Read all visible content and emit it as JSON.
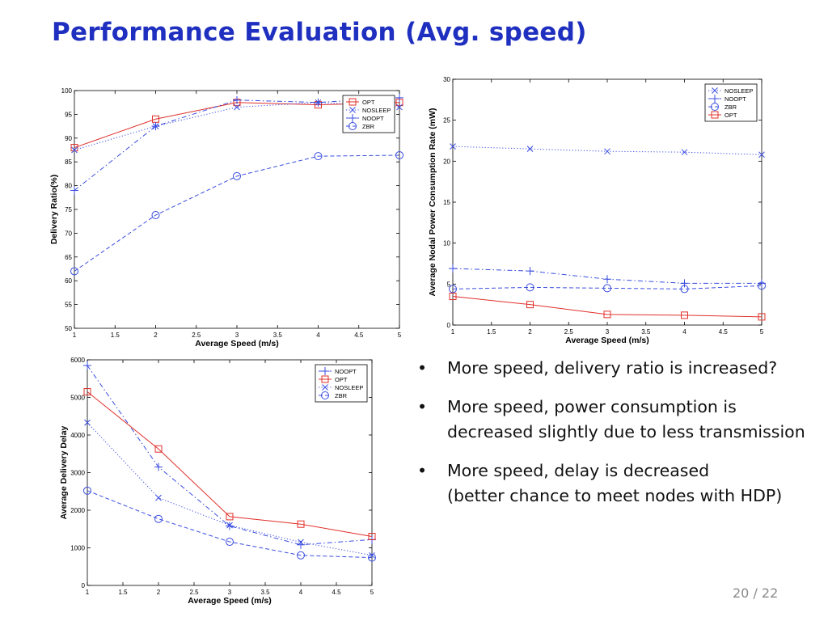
{
  "slide": {
    "title": "Performance Evaluation (Avg. speed)",
    "page_number": "20 / 22",
    "bullets": [
      {
        "line1": "More speed, delivery ratio is increased?",
        "line2": ""
      },
      {
        "line1": "More speed, power consumption is decreased slightly due to less transmission",
        "line2": ""
      },
      {
        "line1": "More speed, delay is decreased",
        "line2": "(better chance to meet nodes with HDP)"
      }
    ]
  },
  "chart_data": [
    {
      "type": "line",
      "xlabel": "Average Speed (m/s)",
      "ylabel": "Delivery Ratio(%)",
      "xlim": [
        1,
        5
      ],
      "ylim": [
        50,
        100
      ],
      "xticks": [
        "1",
        "1.5",
        "2",
        "2.5",
        "3",
        "3.5",
        "4",
        "4.5",
        "5"
      ],
      "yticks": [
        "50",
        "55",
        "60",
        "65",
        "70",
        "75",
        "80",
        "85",
        "90",
        "95",
        "100"
      ],
      "x": [
        1,
        2,
        3,
        4,
        5
      ],
      "legend_position": "top-right",
      "series": [
        {
          "name": "OPT",
          "values": [
            88,
            94,
            97.5,
            97,
            97.5
          ],
          "color": "#e0302a",
          "marker": "square",
          "dash": "solid"
        },
        {
          "name": "NOSLEEP",
          "values": [
            87.5,
            92.5,
            96.5,
            97.5,
            96.5
          ],
          "color": "#3a4de0",
          "marker": "x",
          "dash": "dotted"
        },
        {
          "name": "NOOPT",
          "values": [
            79,
            92.5,
            98,
            97.5,
            98.5
          ],
          "color": "#3a4de0",
          "marker": "plus",
          "dash": "dashdot"
        },
        {
          "name": "ZBR",
          "values": [
            62,
            73.8,
            82,
            86.2,
            86.4
          ],
          "color": "#3a4de0",
          "marker": "circle",
          "dash": "dashed"
        }
      ]
    },
    {
      "type": "line",
      "xlabel": "Average Speed (m/s)",
      "ylabel": "Average Nodal Power Consumption Rate (mW)",
      "xlim": [
        1,
        5
      ],
      "ylim": [
        0,
        30
      ],
      "xticks": [
        "1",
        "1.5",
        "2",
        "2.5",
        "3",
        "3.5",
        "4",
        "4.5",
        "5"
      ],
      "yticks": [
        "0",
        "5",
        "10",
        "15",
        "20",
        "25",
        "30"
      ],
      "x": [
        1,
        2,
        3,
        4,
        5
      ],
      "legend_position": "top-right",
      "series": [
        {
          "name": "NOSLEEP",
          "values": [
            21.8,
            21.5,
            21.2,
            21.1,
            20.8
          ],
          "color": "#3a4de0",
          "marker": "x",
          "dash": "dotted"
        },
        {
          "name": "NOOPT",
          "values": [
            6.9,
            6.6,
            5.6,
            5.1,
            5.1
          ],
          "color": "#3a4de0",
          "marker": "plus",
          "dash": "dashdot"
        },
        {
          "name": "ZBR",
          "values": [
            4.4,
            4.6,
            4.5,
            4.4,
            4.8
          ],
          "color": "#3a4de0",
          "marker": "circle",
          "dash": "dashed"
        },
        {
          "name": "OPT",
          "values": [
            3.5,
            2.5,
            1.3,
            1.2,
            1.0
          ],
          "color": "#e0302a",
          "marker": "square",
          "dash": "solid"
        }
      ]
    },
    {
      "type": "line",
      "xlabel": "Average Speed (m/s)",
      "ylabel": "Average Delivery Delay",
      "xlim": [
        1,
        5
      ],
      "ylim": [
        0,
        6000
      ],
      "xticks": [
        "1",
        "1.5",
        "2",
        "2.5",
        "3",
        "3.5",
        "4",
        "4.5",
        "5"
      ],
      "yticks": [
        "0",
        "1000",
        "2000",
        "3000",
        "4000",
        "5000",
        "6000"
      ],
      "x": [
        1,
        2,
        3,
        4,
        5
      ],
      "legend_position": "top-right",
      "series": [
        {
          "name": "NOOPT",
          "values": [
            5850,
            3150,
            1580,
            1080,
            1220
          ],
          "color": "#3a4de0",
          "marker": "plus",
          "dash": "dashdot"
        },
        {
          "name": "OPT",
          "values": [
            5150,
            3630,
            1830,
            1630,
            1300
          ],
          "color": "#e0302a",
          "marker": "square",
          "dash": "solid"
        },
        {
          "name": "NOSLEEP",
          "values": [
            4330,
            2330,
            1600,
            1150,
            800
          ],
          "color": "#3a4de0",
          "marker": "x",
          "dash": "dotted"
        },
        {
          "name": "ZBR",
          "values": [
            2520,
            1770,
            1160,
            800,
            740
          ],
          "color": "#3a4de0",
          "marker": "circle",
          "dash": "dashed"
        }
      ]
    }
  ]
}
